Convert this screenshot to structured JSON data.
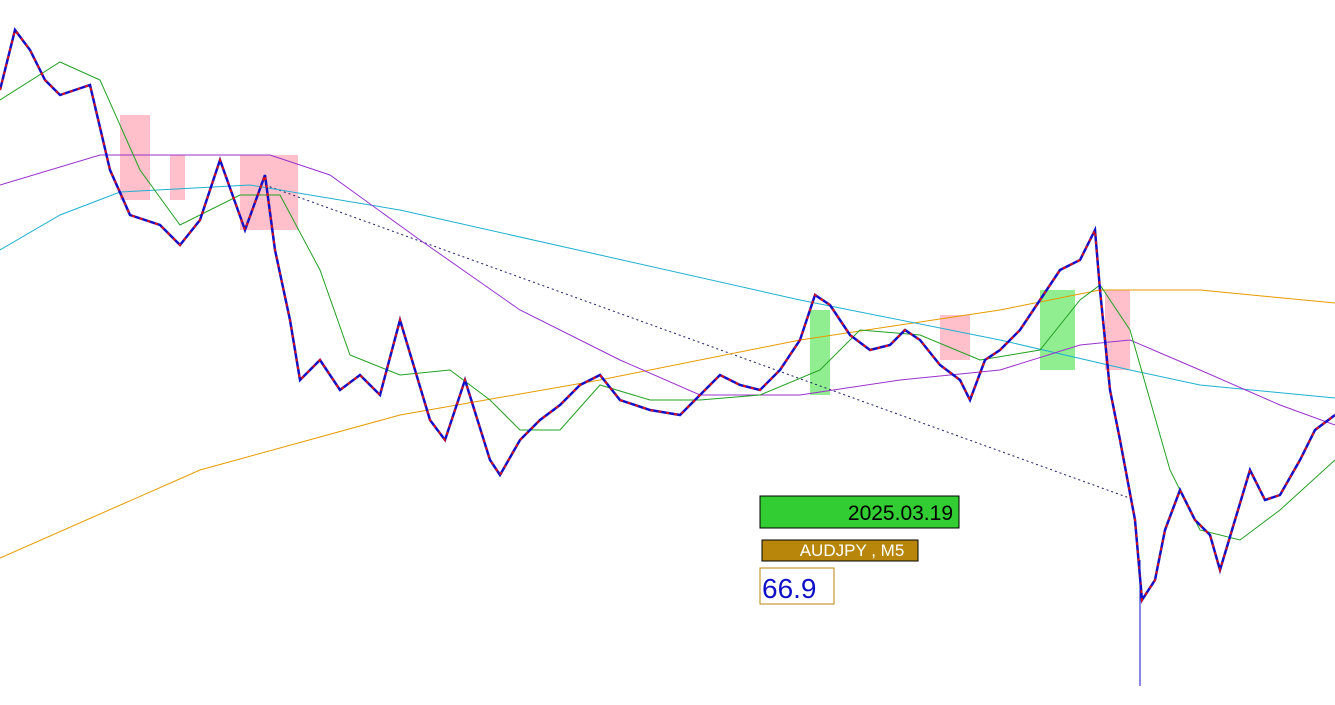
{
  "date_label": "2025.03.19",
  "symbol_label": "AUDJPY , M5",
  "value_label": 66.9
}
